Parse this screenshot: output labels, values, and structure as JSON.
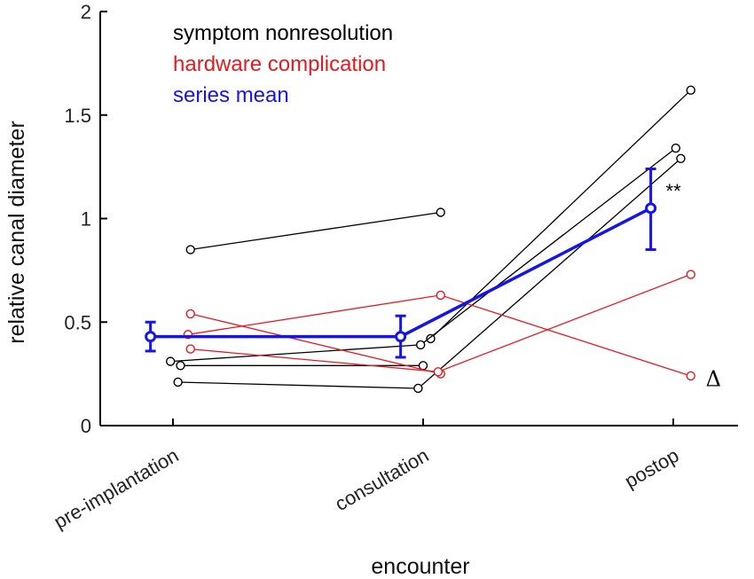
{
  "chart_data": {
    "type": "line",
    "categories": [
      "pre-implantation",
      "consultation",
      "postop"
    ],
    "xlabel": "encounter",
    "ylabel": "relative canal diameter",
    "ylim": [
      0,
      2
    ],
    "yticks": [
      0,
      0.5,
      1,
      1.5,
      2
    ],
    "ytick_labels": [
      "0",
      "0.5",
      "1",
      "1.5",
      "2"
    ],
    "grid": false,
    "legend": {
      "placement": "top-left",
      "entries": [
        {
          "label": "symptom nonresolution",
          "color": "#000000"
        },
        {
          "label": "hardware complication",
          "color": "#e8191e"
        },
        {
          "label": "series mean",
          "color": "#1515e6"
        }
      ]
    },
    "patients": [
      {
        "group": "symptom nonresolution",
        "points": [
          {
            "x": 0.07,
            "y": 0.85
          },
          {
            "x": 1.07,
            "y": 1.03
          }
        ]
      },
      {
        "group": "symptom nonresolution",
        "points": [
          {
            "x": 1.03,
            "y": 0.42
          },
          {
            "x": 2.07,
            "y": 1.62
          }
        ]
      },
      {
        "group": "symptom nonresolution",
        "points": [
          {
            "x": -0.01,
            "y": 0.31
          },
          {
            "x": 0.99,
            "y": 0.39
          },
          {
            "x": 2.01,
            "y": 1.34
          }
        ]
      },
      {
        "group": "symptom nonresolution",
        "points": [
          {
            "x": 0.03,
            "y": 0.29
          },
          {
            "x": 1.0,
            "y": 0.29
          }
        ]
      },
      {
        "group": "symptom nonresolution",
        "points": [
          {
            "x": 0.02,
            "y": 0.21
          },
          {
            "x": 0.98,
            "y": 0.18
          },
          {
            "x": 2.03,
            "y": 1.29
          }
        ]
      },
      {
        "group": "hardware complication",
        "points": [
          {
            "x": 0.07,
            "y": 0.54
          },
          {
            "x": 1.07,
            "y": 0.25
          }
        ]
      },
      {
        "group": "hardware complication",
        "points": [
          {
            "x": 0.06,
            "y": 0.44
          },
          {
            "x": 1.07,
            "y": 0.63
          },
          {
            "x": 2.07,
            "y": 0.24
          }
        ]
      },
      {
        "group": "hardware complication",
        "points": [
          {
            "x": 0.07,
            "y": 0.37
          },
          {
            "x": 1.06,
            "y": 0.26
          },
          {
            "x": 2.07,
            "y": 0.73
          }
        ]
      }
    ],
    "mean_series": {
      "name": "series mean",
      "points": [
        {
          "x": -0.09,
          "y": 0.43,
          "err_low": 0.36,
          "err_high": 0.5
        },
        {
          "x": 0.91,
          "y": 0.43,
          "err_low": 0.33,
          "err_high": 0.53
        },
        {
          "x": 1.91,
          "y": 1.05,
          "err_low": 0.85,
          "err_high": 1.24
        }
      ]
    },
    "annotations": [
      {
        "text": "**",
        "x": 1.97,
        "y": 1.1
      },
      {
        "text": "Δ",
        "x": 2.13,
        "y": 0.19
      }
    ],
    "colors": {
      "symptom": "#000000",
      "hardware": "#e8191e",
      "mean": "#1515e6",
      "axis": "#000000"
    }
  }
}
